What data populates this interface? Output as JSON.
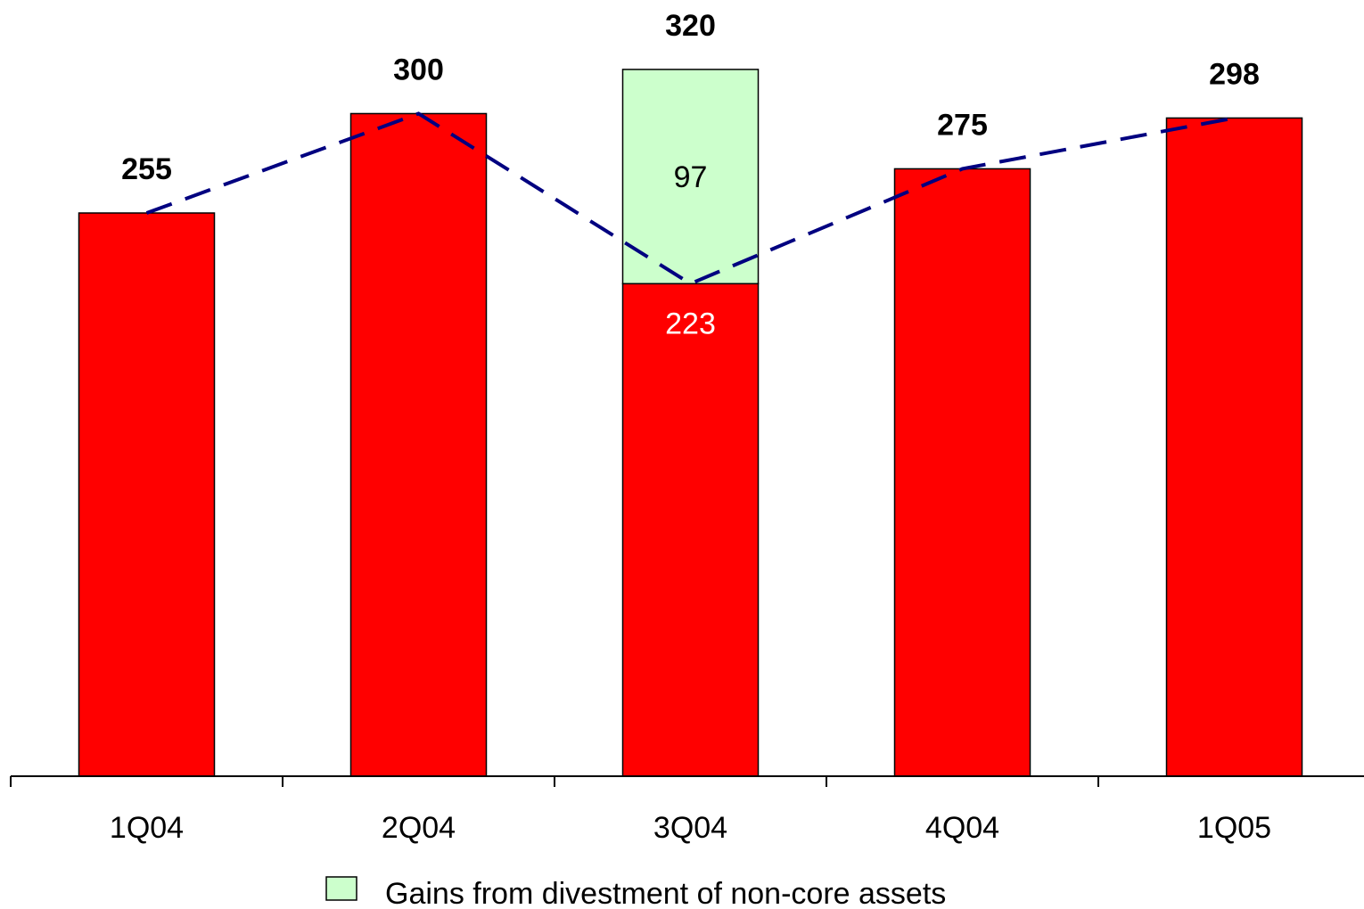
{
  "chart_data": {
    "type": "bar",
    "stacked": true,
    "categories": [
      "1Q04",
      "2Q04",
      "3Q04",
      "4Q04",
      "1Q05"
    ],
    "series": [
      {
        "values": [
          255,
          300,
          223,
          275,
          298
        ],
        "color": "#FF0000"
      },
      {
        "name": "Gains from divestment of non-core assets",
        "values": [
          0,
          0,
          97,
          0,
          0
        ],
        "color": "#CCFFCC"
      }
    ],
    "totals": [
      255,
      300,
      320,
      275,
      298
    ],
    "segment_labels": [
      {
        "category": "3Q04",
        "series": 0,
        "text": "223",
        "color": "#FFFFFF"
      },
      {
        "category": "3Q04",
        "series": 1,
        "text": "97",
        "color": "#000000"
      }
    ],
    "trend_line": {
      "style": "dashed",
      "color": "#000080",
      "values": [
        255,
        300,
        223,
        275,
        298
      ]
    },
    "ylim": [
      0,
      350
    ],
    "grid": false,
    "legend": {
      "position": "bottom",
      "entries": [
        "Gains from divestment of non-core assets"
      ]
    }
  }
}
